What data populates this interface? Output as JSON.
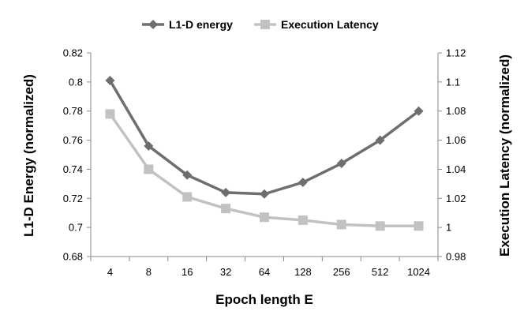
{
  "chart_data": {
    "type": "line",
    "title": "",
    "xlabel": "Epoch length E",
    "ylabel": "L1-D Energy (normalized)",
    "ylabel_right": "Execution Latency (normalized)",
    "categories": [
      "4",
      "8",
      "16",
      "32",
      "64",
      "128",
      "256",
      "512",
      "1024"
    ],
    "ylim": [
      0.68,
      0.82
    ],
    "ylim_right": [
      0.98,
      1.12
    ],
    "yticks": [
      "0.68",
      "0.7",
      "0.72",
      "0.74",
      "0.76",
      "0.78",
      "0.8",
      "0.82"
    ],
    "yticks_right": [
      "0.98",
      "1",
      "1.02",
      "1.04",
      "1.06",
      "1.08",
      "1.1",
      "1.12"
    ],
    "grid": false,
    "legend_position": "top",
    "series": [
      {
        "name": "L1-D energy",
        "axis": "left",
        "marker": "diamond",
        "color": "#6e6e6e",
        "values": [
          0.801,
          0.756,
          0.736,
          0.724,
          0.723,
          0.731,
          0.744,
          0.76,
          0.78
        ]
      },
      {
        "name": "Execution Latency",
        "axis": "right",
        "marker": "square",
        "color": "#c2c2c2",
        "values": [
          1.078,
          1.04,
          1.021,
          1.013,
          1.007,
          1.005,
          1.002,
          1.001,
          1.001
        ]
      }
    ]
  }
}
